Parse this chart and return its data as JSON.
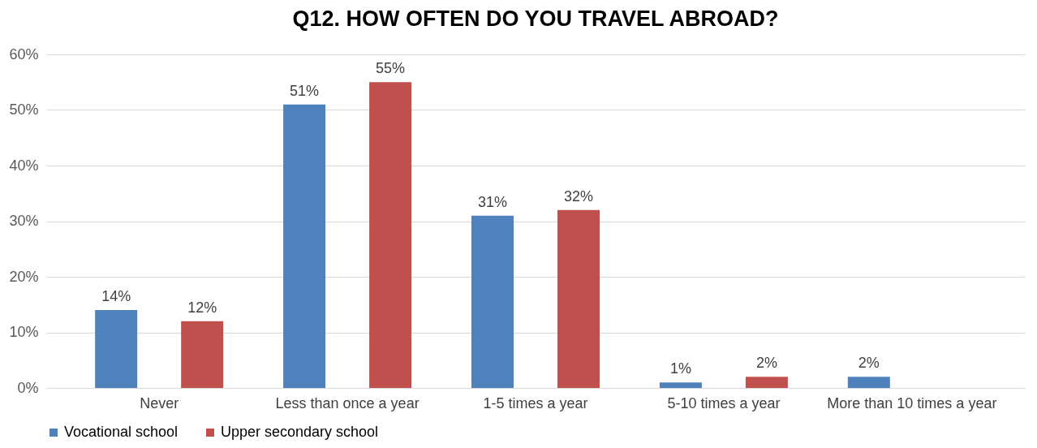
{
  "chart_data": {
    "type": "bar",
    "title": "Q12. HOW OFTEN DO YOU TRAVEL ABROAD?",
    "categories": [
      "Never",
      "Less than once a year",
      "1-5 times a year",
      "5-10 times a year",
      "More than 10 times a year"
    ],
    "series": [
      {
        "name": "Vocational school",
        "color": "#4f81bd",
        "values": [
          14,
          51,
          31,
          1,
          2
        ],
        "value_labels": [
          "14%",
          "51%",
          "31%",
          "1%",
          "2%"
        ]
      },
      {
        "name": "Upper secondary school",
        "color": "#c0504d",
        "values": [
          12,
          55,
          32,
          2,
          null
        ],
        "value_labels": [
          "12%",
          "55%",
          "32%",
          "2%",
          null
        ]
      }
    ],
    "ylim": [
      0,
      60
    ],
    "yticks": [
      {
        "value": 0,
        "label": "0%"
      },
      {
        "value": 10,
        "label": "10%"
      },
      {
        "value": 20,
        "label": "20%"
      },
      {
        "value": 30,
        "label": "30%"
      },
      {
        "value": 40,
        "label": "40%"
      },
      {
        "value": 50,
        "label": "50%"
      },
      {
        "value": 60,
        "label": "60%"
      }
    ],
    "grid": "y",
    "legend": "bottom"
  }
}
